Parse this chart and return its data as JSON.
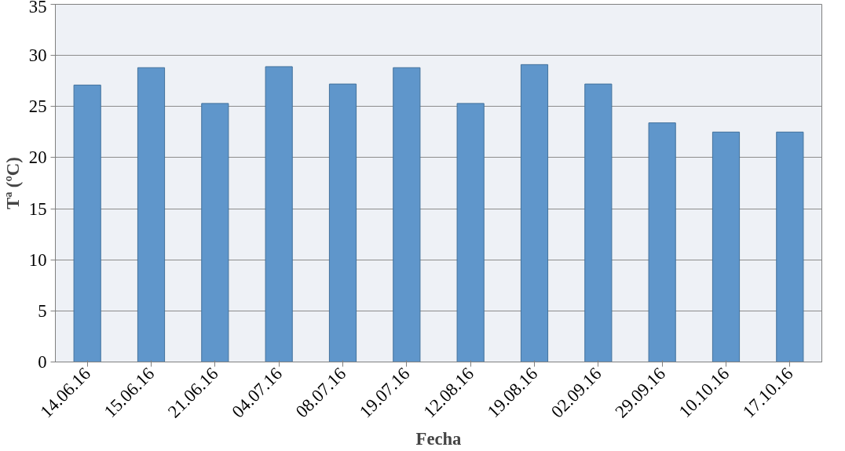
{
  "chart_data": {
    "type": "bar",
    "xlabel": "Fecha",
    "ylabel": "Tª (ºC)",
    "categories": [
      "14.06.16",
      "15.06.16",
      "21.06.16",
      "04.07.16",
      "08.07.16",
      "19.07.16",
      "12.08.16",
      "19.08.16",
      "02.09.16",
      "29.09.16",
      "10.10.16",
      "17.10.16"
    ],
    "values": [
      27.1,
      28.8,
      25.3,
      28.9,
      27.2,
      28.8,
      25.3,
      29.1,
      27.2,
      23.4,
      22.5,
      22.5
    ],
    "color": "#5f96cb",
    "ylim": [
      0,
      35
    ],
    "yticks": [
      0,
      5,
      10,
      15,
      20,
      25,
      30,
      35
    ],
    "grid": "y"
  }
}
